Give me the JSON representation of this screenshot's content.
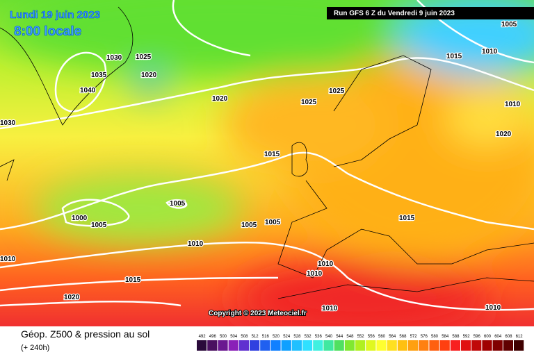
{
  "map": {
    "title": "Lundi 19 juin 2023",
    "time": "8:00 locale",
    "run": "Run GFS 6 Z du Vendredi 9 juin 2023",
    "copyright": "Copyright © 2023 Meteociel.fr",
    "isobar_labels": [
      "1030",
      "1025",
      "1035",
      "1020",
      "1040",
      "1020",
      "1025",
      "1025",
      "1030",
      "1015",
      "1005",
      "1000",
      "1005",
      "1005",
      "1005",
      "1010",
      "1015",
      "1010",
      "1010",
      "1010",
      "1015",
      "1020",
      "1010",
      "1010",
      "1005",
      "1015",
      "1010",
      "1010",
      "1020"
    ]
  },
  "footer": {
    "field": "Géop. Z500 & pression au sol",
    "lead": "(+ 240h)"
  },
  "color_scale": {
    "values": [
      492,
      496,
      500,
      504,
      508,
      512,
      516,
      520,
      524,
      528,
      532,
      536,
      540,
      544,
      548,
      552,
      556,
      560,
      564,
      568,
      572,
      576,
      580,
      584,
      588,
      592,
      596,
      600,
      604,
      608,
      612
    ],
    "colors": [
      "#2a0a3a",
      "#4a1060",
      "#6a1890",
      "#8a20b8",
      "#6030d0",
      "#3040e0",
      "#2060f0",
      "#1080ff",
      "#10a0ff",
      "#20c0ff",
      "#30e0ff",
      "#40f0e0",
      "#40e8a0",
      "#50e060",
      "#80e830",
      "#b0f020",
      "#e0f820",
      "#ffff30",
      "#ffe020",
      "#ffc010",
      "#ffa010",
      "#ff8010",
      "#ff6010",
      "#ff4010",
      "#f82020",
      "#e01010",
      "#c00808",
      "#a00000",
      "#800000",
      "#600000",
      "#400000"
    ]
  }
}
